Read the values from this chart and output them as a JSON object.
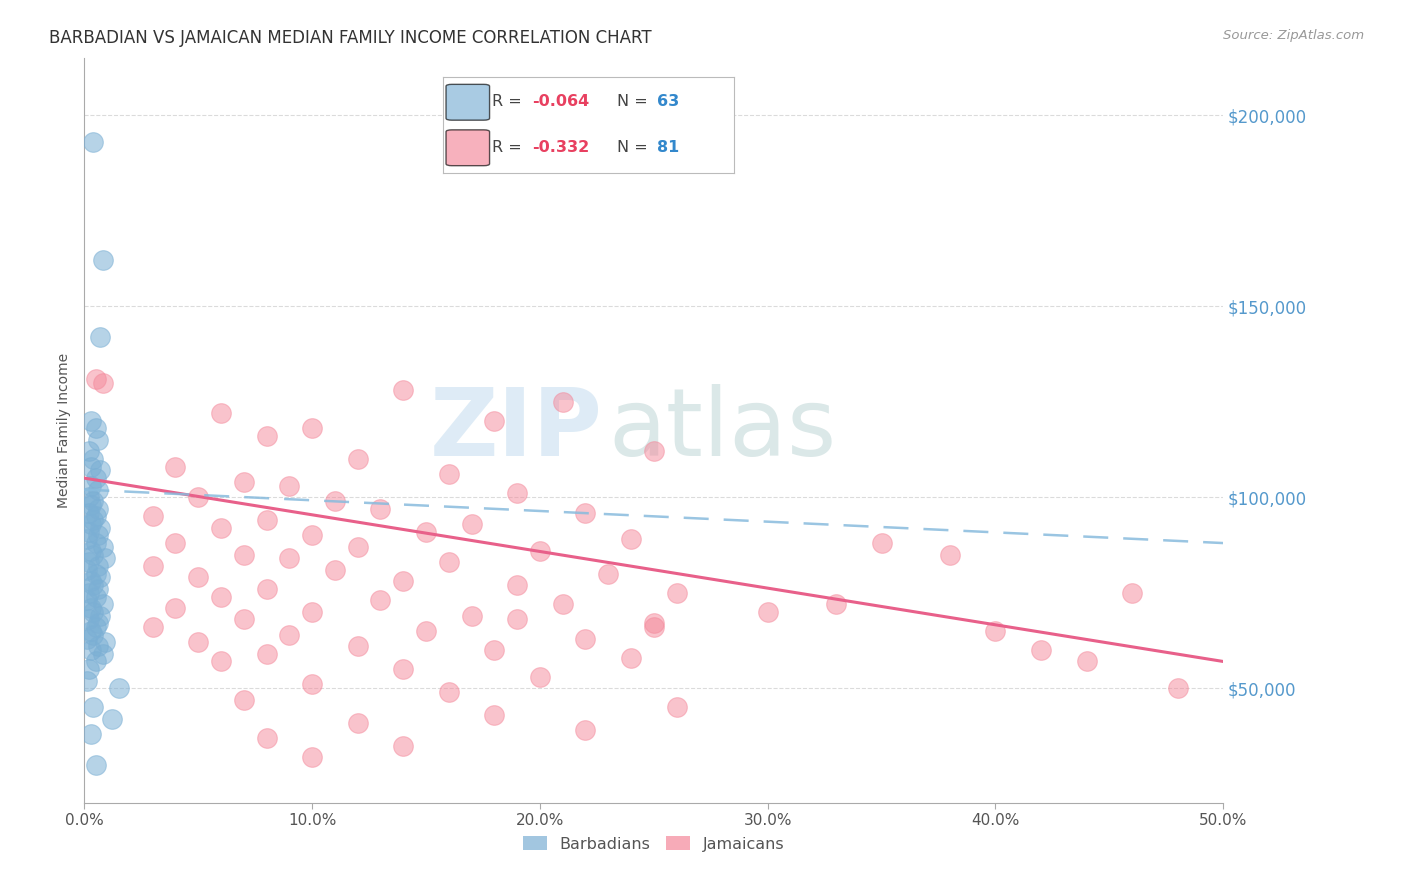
{
  "title": "BARBADIAN VS JAMAICAN MEDIAN FAMILY INCOME CORRELATION CHART",
  "source": "Source: ZipAtlas.com",
  "ylabel": "Median Family Income",
  "x_min": 0.0,
  "x_max": 0.5,
  "y_min": 20000,
  "y_max": 215000,
  "y_ticks": [
    50000,
    100000,
    150000,
    200000
  ],
  "y_tick_labels": [
    "$50,000",
    "$100,000",
    "$150,000",
    "$200,000"
  ],
  "x_tick_labels": [
    "0.0%",
    "10.0%",
    "20.0%",
    "30.0%",
    "40.0%",
    "50.0%"
  ],
  "x_ticks": [
    0.0,
    0.1,
    0.2,
    0.3,
    0.4,
    0.5
  ],
  "barbadian_color": "#7bafd4",
  "jamaican_color": "#f4889a",
  "barbadian_label": "Barbadians",
  "jamaican_label": "Jamaicans",
  "R_barbadian": -0.064,
  "N_barbadian": 63,
  "R_jamaican": -0.332,
  "N_jamaican": 81,
  "background_color": "#ffffff",
  "grid_color": "#cccccc",
  "watermark_zip": "ZIP",
  "watermark_atlas": "atlas",
  "title_fontsize": 12,
  "tick_fontsize": 11,
  "legend_fontsize": 12,
  "right_tick_color": "#5599cc",
  "barbadian_points_x": [
    0.004,
    0.008,
    0.007,
    0.003,
    0.005,
    0.006,
    0.002,
    0.004,
    0.003,
    0.007,
    0.005,
    0.003,
    0.006,
    0.002,
    0.004,
    0.003,
    0.006,
    0.002,
    0.005,
    0.004,
    0.003,
    0.007,
    0.002,
    0.006,
    0.001,
    0.005,
    0.008,
    0.003,
    0.004,
    0.009,
    0.002,
    0.006,
    0.001,
    0.005,
    0.007,
    0.003,
    0.004,
    0.006,
    0.002,
    0.005,
    0.001,
    0.008,
    0.003,
    0.004,
    0.007,
    0.002,
    0.006,
    0.005,
    0.003,
    0.004,
    0.001,
    0.009,
    0.006,
    0.003,
    0.008,
    0.005,
    0.002,
    0.001,
    0.015,
    0.004,
    0.012,
    0.003,
    0.005
  ],
  "barbadian_points_y": [
    193000,
    162000,
    142000,
    120000,
    118000,
    115000,
    112000,
    110000,
    108000,
    107000,
    105000,
    103000,
    102000,
    100000,
    99000,
    98000,
    97000,
    96000,
    95000,
    94000,
    93000,
    92000,
    91000,
    90000,
    89000,
    88000,
    87000,
    86000,
    85000,
    84000,
    83000,
    82000,
    81000,
    80000,
    79000,
    78000,
    77000,
    76000,
    75000,
    74000,
    73000,
    72000,
    71000,
    70000,
    69000,
    68000,
    67000,
    66000,
    65000,
    64000,
    63000,
    62000,
    61000,
    60000,
    59000,
    57000,
    55000,
    52000,
    50000,
    45000,
    42000,
    38000,
    30000
  ],
  "jamaican_points_x": [
    0.005,
    0.008,
    0.14,
    0.21,
    0.06,
    0.18,
    0.1,
    0.08,
    0.25,
    0.12,
    0.04,
    0.16,
    0.07,
    0.09,
    0.19,
    0.05,
    0.11,
    0.13,
    0.22,
    0.03,
    0.08,
    0.17,
    0.06,
    0.15,
    0.1,
    0.24,
    0.04,
    0.12,
    0.2,
    0.07,
    0.09,
    0.16,
    0.03,
    0.11,
    0.23,
    0.05,
    0.14,
    0.19,
    0.08,
    0.26,
    0.06,
    0.13,
    0.21,
    0.04,
    0.1,
    0.17,
    0.07,
    0.25,
    0.03,
    0.15,
    0.09,
    0.22,
    0.05,
    0.12,
    0.18,
    0.08,
    0.24,
    0.06,
    0.14,
    0.2,
    0.1,
    0.16,
    0.07,
    0.26,
    0.18,
    0.12,
    0.22,
    0.08,
    0.14,
    0.1,
    0.3,
    0.19,
    0.25,
    0.38,
    0.42,
    0.44,
    0.46,
    0.48,
    0.35,
    0.4,
    0.33
  ],
  "jamaican_points_y": [
    131000,
    130000,
    128000,
    125000,
    122000,
    120000,
    118000,
    116000,
    112000,
    110000,
    108000,
    106000,
    104000,
    103000,
    101000,
    100000,
    99000,
    97000,
    96000,
    95000,
    94000,
    93000,
    92000,
    91000,
    90000,
    89000,
    88000,
    87000,
    86000,
    85000,
    84000,
    83000,
    82000,
    81000,
    80000,
    79000,
    78000,
    77000,
    76000,
    75000,
    74000,
    73000,
    72000,
    71000,
    70000,
    69000,
    68000,
    67000,
    66000,
    65000,
    64000,
    63000,
    62000,
    61000,
    60000,
    59000,
    58000,
    57000,
    55000,
    53000,
    51000,
    49000,
    47000,
    45000,
    43000,
    41000,
    39000,
    37000,
    35000,
    32000,
    70000,
    68000,
    66000,
    85000,
    60000,
    57000,
    75000,
    50000,
    88000,
    65000,
    72000
  ]
}
